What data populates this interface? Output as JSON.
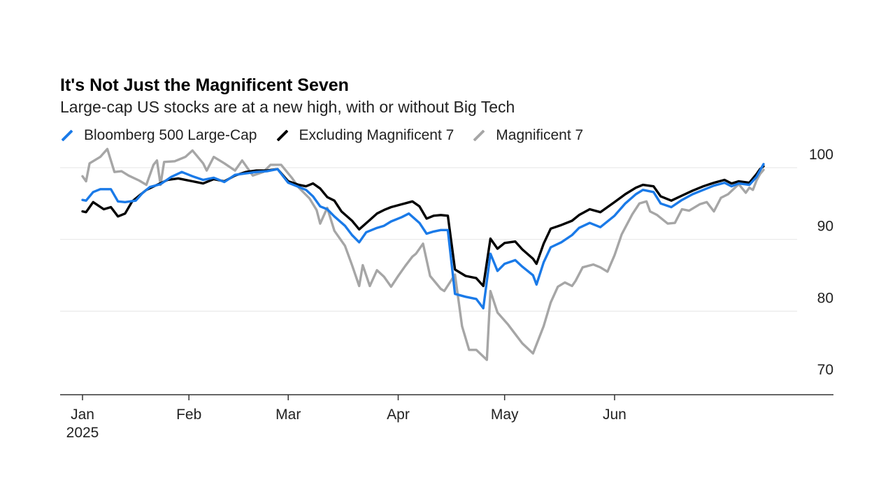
{
  "chart_data": {
    "type": "line",
    "title": "It's Not Just the Magnificent Seven",
    "subtitle": "Large-cap US stocks are at a new high, with or without Big Tech",
    "xlabel": "",
    "ylabel": "",
    "x_ticks": [
      {
        "label": "Jan",
        "sublabel": "2025",
        "date": "2025-01-02"
      },
      {
        "label": "Feb",
        "sublabel": "",
        "date": "2025-02-01"
      },
      {
        "label": "Mar",
        "sublabel": "",
        "date": "2025-03-01"
      },
      {
        "label": "Apr",
        "sublabel": "",
        "date": "2025-04-01"
      },
      {
        "label": "May",
        "sublabel": "",
        "date": "2025-05-01"
      },
      {
        "label": "Jun",
        "sublabel": "",
        "date": "2025-06-01"
      }
    ],
    "xlim": [
      "2025-01-02",
      "2025-07-13"
    ],
    "ylim": [
      70,
      100
    ],
    "y_ticks": [
      70,
      80,
      90,
      100
    ],
    "grid": true,
    "legend_position": "top-left",
    "series": [
      {
        "name": "Magnificent 7",
        "color": "#a6a6a6",
        "points": [
          [
            "2025-01-02",
            98.8
          ],
          [
            "2025-01-03",
            98.1
          ],
          [
            "2025-01-04",
            100.6
          ],
          [
            "2025-01-07",
            101.5
          ],
          [
            "2025-01-09",
            102.6
          ],
          [
            "2025-01-11",
            99.4
          ],
          [
            "2025-01-13",
            99.5
          ],
          [
            "2025-01-15",
            98.9
          ],
          [
            "2025-01-18",
            98.2
          ],
          [
            "2025-01-20",
            97.6
          ],
          [
            "2025-01-22",
            100.4
          ],
          [
            "2025-01-23",
            101.0
          ],
          [
            "2025-01-24",
            97.6
          ],
          [
            "2025-01-25",
            100.8
          ],
          [
            "2025-01-28",
            100.9
          ],
          [
            "2025-01-31",
            101.5
          ],
          [
            "2025-02-02",
            102.4
          ],
          [
            "2025-02-05",
            100.6
          ],
          [
            "2025-02-06",
            99.6
          ],
          [
            "2025-02-08",
            101.5
          ],
          [
            "2025-02-11",
            100.6
          ],
          [
            "2025-02-14",
            99.6
          ],
          [
            "2025-02-16",
            101.0
          ],
          [
            "2025-02-19",
            98.9
          ],
          [
            "2025-02-22",
            99.4
          ],
          [
            "2025-02-24",
            100.4
          ],
          [
            "2025-02-27",
            100.4
          ],
          [
            "2025-03-02",
            98.6
          ],
          [
            "2025-03-04",
            97.2
          ],
          [
            "2025-03-07",
            95.7
          ],
          [
            "2025-03-09",
            94.1
          ],
          [
            "2025-03-10",
            92.2
          ],
          [
            "2025-03-12",
            94.4
          ],
          [
            "2025-03-14",
            91.2
          ],
          [
            "2025-03-17",
            89.1
          ],
          [
            "2025-03-19",
            86.4
          ],
          [
            "2025-03-21",
            83.5
          ],
          [
            "2025-03-22",
            86.4
          ],
          [
            "2025-03-24",
            83.5
          ],
          [
            "2025-03-26",
            85.7
          ],
          [
            "2025-03-28",
            84.8
          ],
          [
            "2025-03-30",
            83.4
          ],
          [
            "2025-04-01",
            84.9
          ],
          [
            "2025-04-03",
            86.3
          ],
          [
            "2025-04-05",
            87.6
          ],
          [
            "2025-04-06",
            88.0
          ],
          [
            "2025-04-08",
            89.4
          ],
          [
            "2025-04-10",
            84.9
          ],
          [
            "2025-04-13",
            83.1
          ],
          [
            "2025-04-14",
            82.8
          ],
          [
            "2025-04-17",
            85.1
          ],
          [
            "2025-04-19",
            77.9
          ],
          [
            "2025-04-21",
            74.6
          ],
          [
            "2025-04-23",
            74.6
          ],
          [
            "2025-04-26",
            73.2
          ],
          [
            "2025-04-27",
            82.8
          ],
          [
            "2025-04-29",
            79.8
          ],
          [
            "2025-05-02",
            78.1
          ],
          [
            "2025-05-04",
            76.8
          ],
          [
            "2025-05-06",
            75.5
          ],
          [
            "2025-05-09",
            74.1
          ],
          [
            "2025-05-12",
            77.9
          ],
          [
            "2025-05-14",
            81.2
          ],
          [
            "2025-05-16",
            83.4
          ],
          [
            "2025-05-18",
            84.0
          ],
          [
            "2025-05-20",
            83.5
          ],
          [
            "2025-05-21",
            84.2
          ],
          [
            "2025-05-23",
            86.1
          ],
          [
            "2025-05-26",
            86.5
          ],
          [
            "2025-05-28",
            86.1
          ],
          [
            "2025-05-30",
            85.5
          ],
          [
            "2025-06-01",
            87.8
          ],
          [
            "2025-06-03",
            90.7
          ],
          [
            "2025-06-06",
            93.5
          ],
          [
            "2025-06-08",
            95.0
          ],
          [
            "2025-06-10",
            95.3
          ],
          [
            "2025-06-11",
            93.9
          ],
          [
            "2025-06-13",
            93.4
          ],
          [
            "2025-06-16",
            92.2
          ],
          [
            "2025-06-18",
            92.3
          ],
          [
            "2025-06-20",
            94.2
          ],
          [
            "2025-06-22",
            94.0
          ],
          [
            "2025-06-25",
            94.9
          ],
          [
            "2025-06-27",
            95.2
          ],
          [
            "2025-06-29",
            93.9
          ],
          [
            "2025-07-01",
            95.8
          ],
          [
            "2025-07-03",
            96.3
          ],
          [
            "2025-07-06",
            97.7
          ],
          [
            "2025-07-08",
            96.5
          ],
          [
            "2025-07-09",
            97.2
          ],
          [
            "2025-07-10",
            96.9
          ],
          [
            "2025-07-11",
            98.2
          ],
          [
            "2025-07-12",
            99.1
          ],
          [
            "2025-07-13",
            99.7
          ]
        ]
      },
      {
        "name": "Excluding Magnificent 7",
        "color": "#000000",
        "points": [
          [
            "2025-01-02",
            93.9
          ],
          [
            "2025-01-03",
            93.8
          ],
          [
            "2025-01-05",
            95.2
          ],
          [
            "2025-01-08",
            94.2
          ],
          [
            "2025-01-10",
            94.5
          ],
          [
            "2025-01-12",
            93.2
          ],
          [
            "2025-01-14",
            93.6
          ],
          [
            "2025-01-16",
            95.3
          ],
          [
            "2025-01-18",
            96.1
          ],
          [
            "2025-01-20",
            96.9
          ],
          [
            "2025-01-23",
            97.6
          ],
          [
            "2025-01-26",
            98.3
          ],
          [
            "2025-01-29",
            98.5
          ],
          [
            "2025-02-02",
            98.1
          ],
          [
            "2025-02-05",
            97.8
          ],
          [
            "2025-02-08",
            98.4
          ],
          [
            "2025-02-11",
            98.1
          ],
          [
            "2025-02-14",
            98.9
          ],
          [
            "2025-02-17",
            99.4
          ],
          [
            "2025-02-20",
            99.6
          ],
          [
            "2025-02-23",
            99.6
          ],
          [
            "2025-02-26",
            99.8
          ],
          [
            "2025-03-01",
            98.1
          ],
          [
            "2025-03-04",
            97.6
          ],
          [
            "2025-03-06",
            97.4
          ],
          [
            "2025-03-08",
            97.8
          ],
          [
            "2025-03-10",
            97.1
          ],
          [
            "2025-03-12",
            95.9
          ],
          [
            "2025-03-14",
            95.4
          ],
          [
            "2025-03-16",
            93.9
          ],
          [
            "2025-03-19",
            92.6
          ],
          [
            "2025-03-21",
            91.4
          ],
          [
            "2025-03-24",
            92.7
          ],
          [
            "2025-03-26",
            93.6
          ],
          [
            "2025-03-28",
            94.1
          ],
          [
            "2025-03-30",
            94.5
          ],
          [
            "2025-04-02",
            94.9
          ],
          [
            "2025-04-05",
            95.3
          ],
          [
            "2025-04-07",
            94.6
          ],
          [
            "2025-04-09",
            92.9
          ],
          [
            "2025-04-11",
            93.3
          ],
          [
            "2025-04-13",
            93.4
          ],
          [
            "2025-04-15",
            93.3
          ],
          [
            "2025-04-17",
            85.8
          ],
          [
            "2025-04-20",
            84.9
          ],
          [
            "2025-04-23",
            84.6
          ],
          [
            "2025-04-25",
            83.5
          ],
          [
            "2025-04-27",
            90.1
          ],
          [
            "2025-04-29",
            88.7
          ],
          [
            "2025-05-01",
            89.5
          ],
          [
            "2025-05-04",
            89.7
          ],
          [
            "2025-05-06",
            88.6
          ],
          [
            "2025-05-09",
            87.3
          ],
          [
            "2025-05-10",
            86.6
          ],
          [
            "2025-05-12",
            89.4
          ],
          [
            "2025-05-14",
            91.5
          ],
          [
            "2025-05-17",
            92.0
          ],
          [
            "2025-05-20",
            92.6
          ],
          [
            "2025-05-22",
            93.4
          ],
          [
            "2025-05-25",
            94.2
          ],
          [
            "2025-05-28",
            93.8
          ],
          [
            "2025-06-01",
            95.2
          ],
          [
            "2025-06-04",
            96.3
          ],
          [
            "2025-06-07",
            97.2
          ],
          [
            "2025-06-09",
            97.6
          ],
          [
            "2025-06-12",
            97.4
          ],
          [
            "2025-06-14",
            96.0
          ],
          [
            "2025-06-17",
            95.4
          ],
          [
            "2025-06-20",
            96.1
          ],
          [
            "2025-06-23",
            96.8
          ],
          [
            "2025-06-26",
            97.4
          ],
          [
            "2025-06-29",
            97.9
          ],
          [
            "2025-07-02",
            98.3
          ],
          [
            "2025-07-04",
            97.8
          ],
          [
            "2025-07-06",
            98.1
          ],
          [
            "2025-07-09",
            97.9
          ],
          [
            "2025-07-11",
            99.1
          ],
          [
            "2025-07-12",
            99.8
          ],
          [
            "2025-07-13",
            100.2
          ]
        ]
      },
      {
        "name": "Bloomberg 500 Large-Cap",
        "color": "#1a7ae8",
        "points": [
          [
            "2025-01-02",
            95.5
          ],
          [
            "2025-01-03",
            95.4
          ],
          [
            "2025-01-05",
            96.6
          ],
          [
            "2025-01-07",
            97.0
          ],
          [
            "2025-01-10",
            97.0
          ],
          [
            "2025-01-12",
            95.3
          ],
          [
            "2025-01-14",
            95.2
          ],
          [
            "2025-01-17",
            95.4
          ],
          [
            "2025-01-19",
            96.5
          ],
          [
            "2025-01-21",
            97.3
          ],
          [
            "2025-01-24",
            97.7
          ],
          [
            "2025-01-27",
            98.7
          ],
          [
            "2025-01-30",
            99.4
          ],
          [
            "2025-02-02",
            98.8
          ],
          [
            "2025-02-05",
            98.3
          ],
          [
            "2025-02-08",
            98.6
          ],
          [
            "2025-02-11",
            98.0
          ],
          [
            "2025-02-14",
            99.0
          ],
          [
            "2025-02-17",
            99.2
          ],
          [
            "2025-02-20",
            99.4
          ],
          [
            "2025-02-23",
            99.5
          ],
          [
            "2025-02-26",
            99.8
          ],
          [
            "2025-03-01",
            97.9
          ],
          [
            "2025-03-04",
            97.3
          ],
          [
            "2025-03-06",
            96.9
          ],
          [
            "2025-03-08",
            96.0
          ],
          [
            "2025-03-10",
            94.6
          ],
          [
            "2025-03-12",
            94.2
          ],
          [
            "2025-03-14",
            93.2
          ],
          [
            "2025-03-17",
            91.9
          ],
          [
            "2025-03-19",
            90.6
          ],
          [
            "2025-03-21",
            89.6
          ],
          [
            "2025-03-23",
            91.0
          ],
          [
            "2025-03-26",
            91.6
          ],
          [
            "2025-03-28",
            91.9
          ],
          [
            "2025-03-30",
            92.5
          ],
          [
            "2025-04-02",
            93.1
          ],
          [
            "2025-04-04",
            93.6
          ],
          [
            "2025-04-07",
            92.3
          ],
          [
            "2025-04-09",
            90.8
          ],
          [
            "2025-04-11",
            91.1
          ],
          [
            "2025-04-13",
            91.3
          ],
          [
            "2025-04-15",
            91.3
          ],
          [
            "2025-04-17",
            82.4
          ],
          [
            "2025-04-20",
            82.0
          ],
          [
            "2025-04-23",
            81.7
          ],
          [
            "2025-04-25",
            80.4
          ],
          [
            "2025-04-27",
            88.0
          ],
          [
            "2025-04-29",
            85.6
          ],
          [
            "2025-05-01",
            86.6
          ],
          [
            "2025-05-04",
            87.1
          ],
          [
            "2025-05-06",
            86.2
          ],
          [
            "2025-05-09",
            85.0
          ],
          [
            "2025-05-10",
            83.7
          ],
          [
            "2025-05-12",
            86.8
          ],
          [
            "2025-05-14",
            88.9
          ],
          [
            "2025-05-17",
            89.6
          ],
          [
            "2025-05-20",
            90.6
          ],
          [
            "2025-05-22",
            91.6
          ],
          [
            "2025-05-25",
            92.3
          ],
          [
            "2025-05-28",
            91.7
          ],
          [
            "2025-06-01",
            93.3
          ],
          [
            "2025-06-04",
            95.0
          ],
          [
            "2025-06-07",
            96.3
          ],
          [
            "2025-06-09",
            96.9
          ],
          [
            "2025-06-12",
            96.6
          ],
          [
            "2025-06-14",
            95.0
          ],
          [
            "2025-06-17",
            94.5
          ],
          [
            "2025-06-20",
            95.5
          ],
          [
            "2025-06-23",
            96.3
          ],
          [
            "2025-06-26",
            96.9
          ],
          [
            "2025-06-29",
            97.5
          ],
          [
            "2025-07-02",
            97.9
          ],
          [
            "2025-07-04",
            97.4
          ],
          [
            "2025-07-06",
            97.8
          ],
          [
            "2025-07-09",
            97.6
          ],
          [
            "2025-07-11",
            98.7
          ],
          [
            "2025-07-12",
            99.6
          ],
          [
            "2025-07-13",
            100.5
          ]
        ]
      }
    ],
    "legend": [
      {
        "name": "Bloomberg 500 Large-Cap",
        "color": "#1a7ae8"
      },
      {
        "name": "Excluding Magnificent 7",
        "color": "#000000"
      },
      {
        "name": "Magnificent 7",
        "color": "#a6a6a6"
      }
    ]
  }
}
